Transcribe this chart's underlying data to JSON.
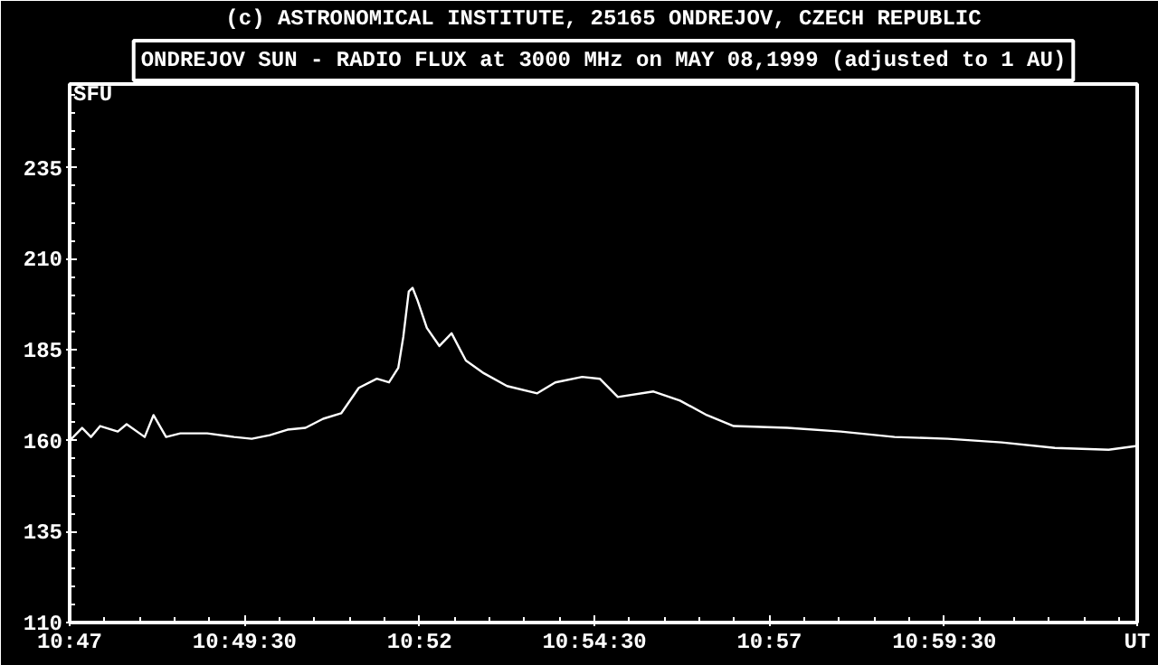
{
  "chart_data": {
    "type": "line",
    "title": "ONDREJOV SUN - RADIO FLUX at 3000 MHz on MAY 08,1999 (adjusted to 1 AU)",
    "annotations": [
      "(c) ASTRONOMICAL INSTITUTE, 25165 ONDREJOV, CZECH REPUBLIC"
    ],
    "ylabel": "SFU",
    "xlabel": "UT",
    "series": [
      {
        "color": "#ffffff",
        "x": [
          10.78333,
          10.7863,
          10.7884,
          10.7906,
          10.7948,
          10.7969,
          10.8012,
          10.8033,
          10.8063,
          10.8097,
          10.8161,
          10.8225,
          10.8267,
          10.831,
          10.8352,
          10.8395,
          10.8437,
          10.848,
          10.8522,
          10.8565,
          10.8594,
          10.8616,
          10.8628,
          10.8641,
          10.865,
          10.8662,
          10.8684,
          10.8714,
          10.8743,
          10.8777,
          10.882,
          10.8875,
          10.8947,
          10.899,
          10.9054,
          10.9096,
          10.9139,
          10.9224,
          10.9287,
          10.9351,
          10.9415,
          10.9543,
          10.967,
          10.9798,
          10.9925,
          11.0053,
          11.018,
          11.0308,
          11.0372
        ],
        "values": [
          160,
          163.5,
          161,
          164,
          162.5,
          164.5,
          161,
          167,
          161,
          162,
          162,
          161,
          160.5,
          161.5,
          163,
          163.5,
          166,
          167.5,
          174.5,
          177,
          176,
          180,
          188.5,
          201,
          202,
          198.5,
          191,
          186,
          189.5,
          182,
          178.5,
          175,
          173,
          176,
          177.5,
          177,
          172,
          173.5,
          171,
          167,
          164,
          163.5,
          162.5,
          161,
          160.5,
          159.5,
          158,
          157.5,
          158.5
        ]
      }
    ],
    "xlim": [
      10.78333,
      11.0376
    ],
    "ylim": [
      110,
      258
    ],
    "xticks": [
      {
        "value": 10.78333,
        "label": "10:47"
      },
      {
        "value": 10.825,
        "label": "10:49:30"
      },
      {
        "value": 10.86667,
        "label": "10:52"
      },
      {
        "value": 10.90833,
        "label": "10:54:30"
      },
      {
        "value": 10.95,
        "label": "10:57"
      },
      {
        "value": 10.99167,
        "label": "10:59:30"
      }
    ],
    "yticks": [
      110,
      135,
      160,
      185,
      210,
      235
    ],
    "grid": false,
    "marker": "none",
    "line_style": "solid"
  }
}
